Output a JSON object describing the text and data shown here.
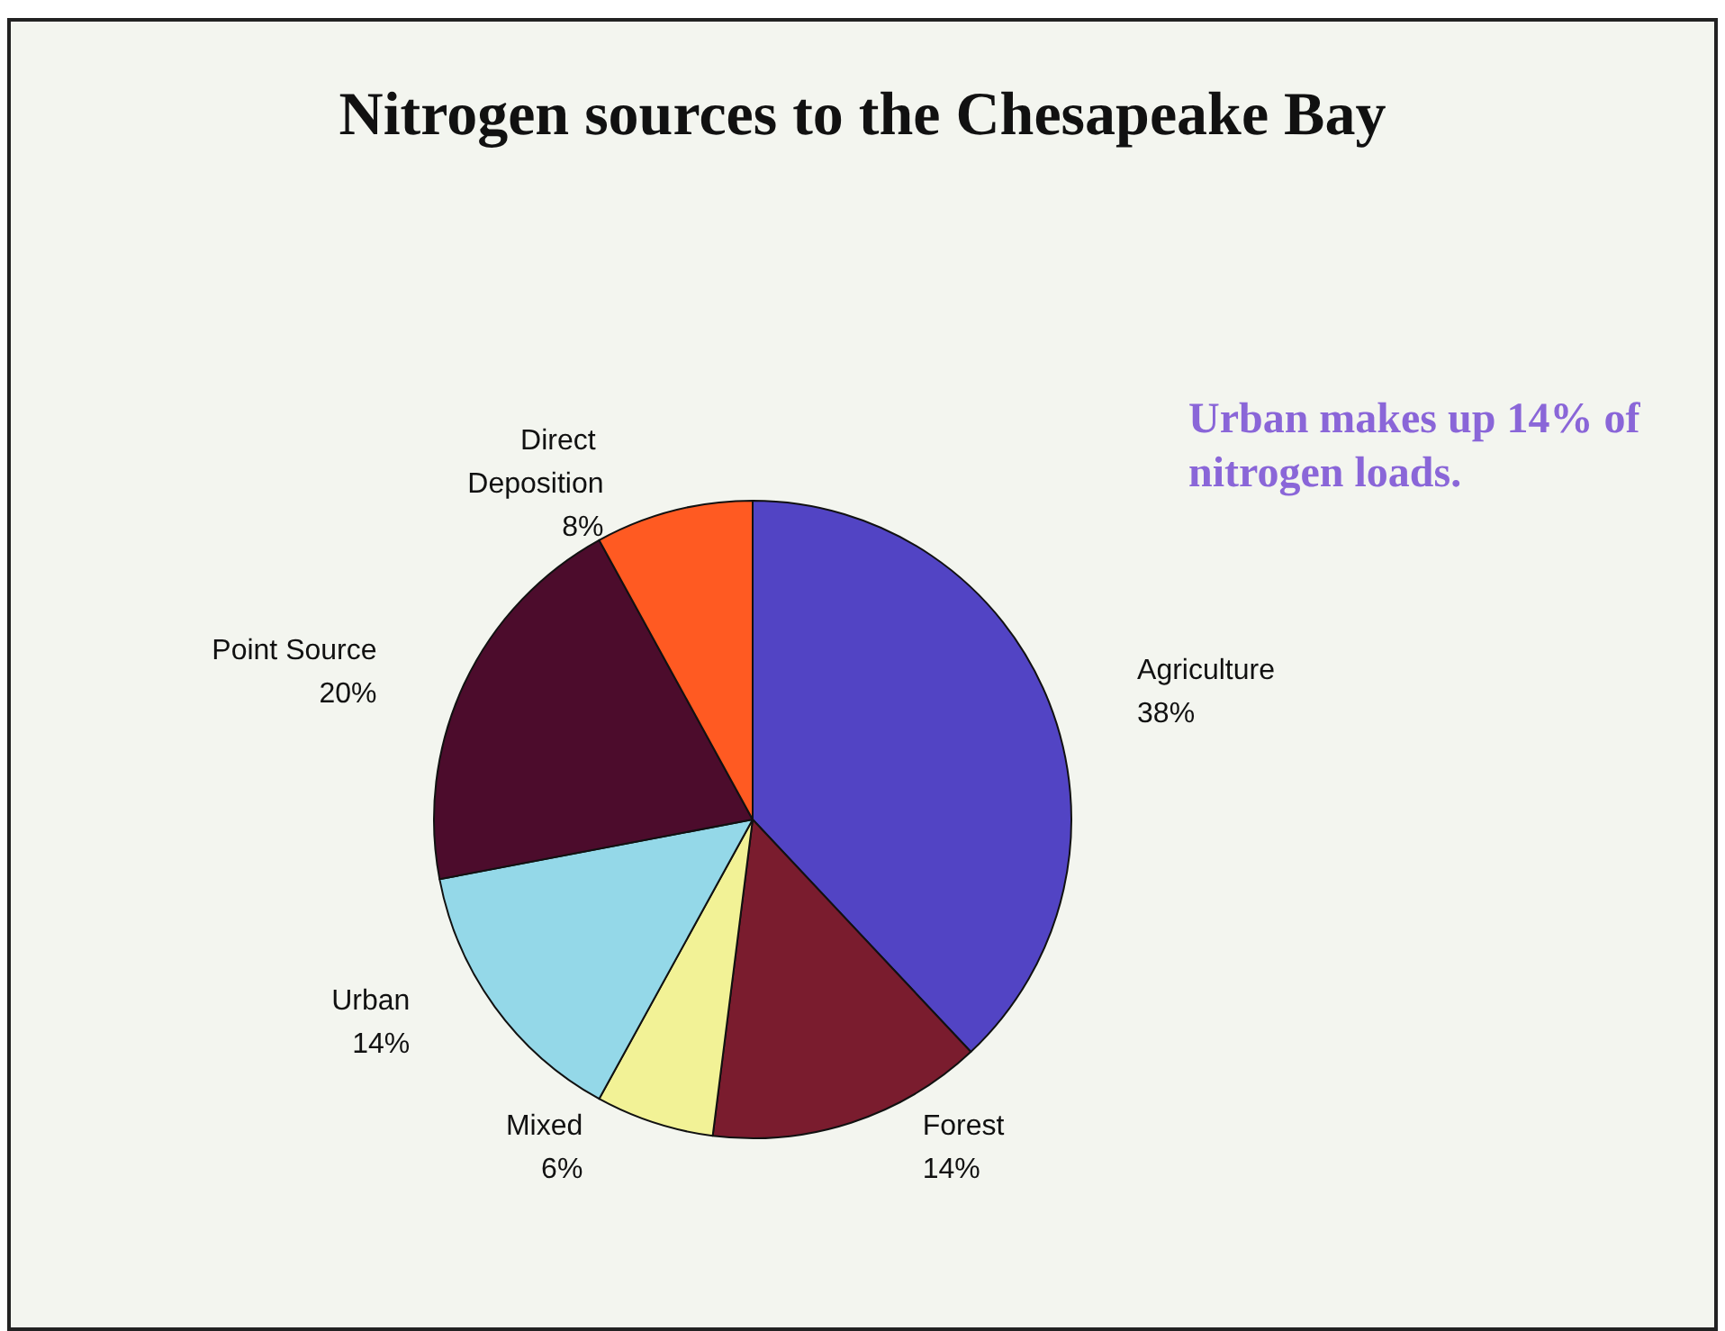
{
  "chart_data": {
    "type": "pie",
    "title": "Nitrogen sources to the Chesapeake Bay",
    "categories": [
      "Agriculture",
      "Forest",
      "Mixed",
      "Urban",
      "Point Source",
      "Direct Deposition"
    ],
    "values": [
      38,
      14,
      6,
      14,
      20,
      8
    ],
    "value_labels": [
      "38%",
      "14%",
      "6%",
      "14%",
      "20%",
      "8%"
    ],
    "colors": [
      "#5244c4",
      "#7a1c2e",
      "#f2f296",
      "#94d8e8",
      "#4c0c2c",
      "#ff5a22"
    ],
    "annotations": [
      "Urban makes up 14% of nitrogen loads."
    ],
    "legend": false
  }
}
